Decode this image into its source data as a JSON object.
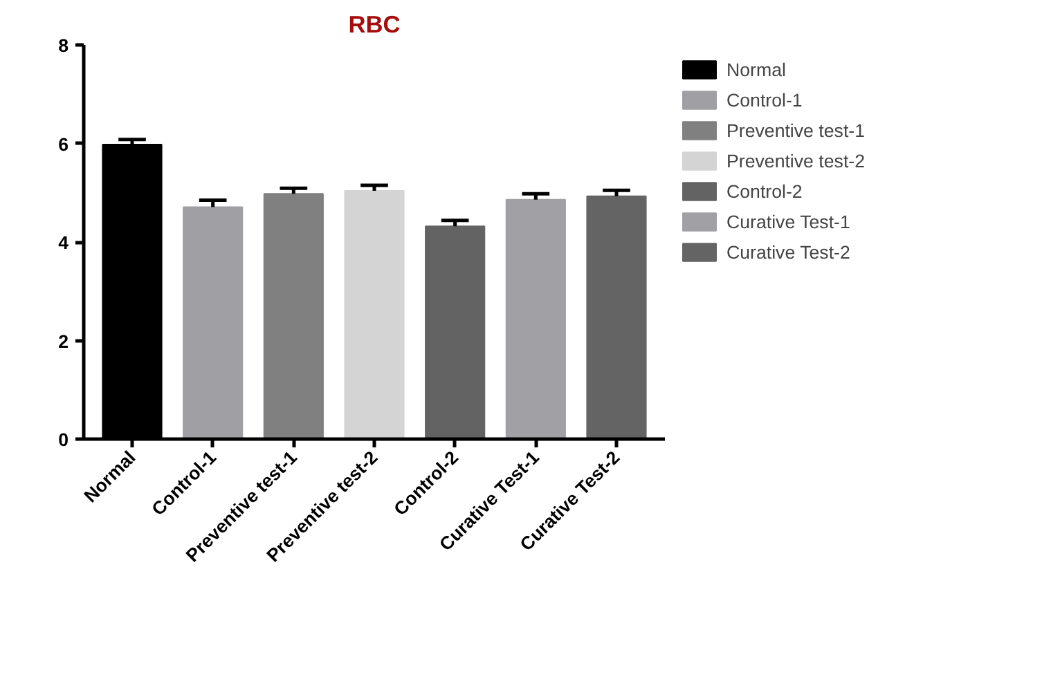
{
  "chart_data": {
    "type": "bar",
    "title": "RBC",
    "categories": [
      "Normal",
      "Control-1",
      "Preventive test-1",
      "Preventive test-2",
      "Control-2",
      "Curative Test-1",
      "Curative Test-2"
    ],
    "series": [
      {
        "name": "Normal",
        "color": "#000000",
        "values": [
          5.98,
          null,
          null,
          null,
          null,
          null,
          null
        ],
        "errors": [
          [
            5.98,
            6.08
          ],
          null,
          null,
          null,
          null,
          null,
          null
        ]
      },
      {
        "name": "Control-1",
        "color": "#a0a0a4",
        "values": [
          null,
          4.71,
          null,
          null,
          null,
          null,
          null
        ],
        "errors": [
          null,
          [
            4.71,
            4.85
          ],
          null,
          null,
          null,
          null,
          null
        ]
      },
      {
        "name": "Preventive test-1",
        "color": "#808080",
        "values": [
          null,
          null,
          4.98,
          null,
          null,
          null,
          null
        ],
        "errors": [
          null,
          null,
          [
            4.98,
            5.09
          ],
          null,
          null,
          null,
          null
        ]
      },
      {
        "name": "Preventive test-2",
        "color": "#d4d4d4",
        "values": [
          null,
          null,
          null,
          5.04,
          null,
          null,
          null
        ],
        "errors": [
          null,
          null,
          null,
          [
            5.04,
            5.15
          ],
          null,
          null,
          null
        ]
      },
      {
        "name": "Control-2",
        "color": "#636363",
        "values": [
          null,
          null,
          null,
          null,
          4.32,
          null,
          null
        ],
        "errors": [
          null,
          null,
          null,
          null,
          [
            4.32,
            4.44
          ],
          null,
          null
        ]
      },
      {
        "name": "Curative Test-1",
        "color": "#a1a1a5",
        "values": [
          null,
          null,
          null,
          null,
          null,
          4.86,
          null
        ],
        "errors": [
          null,
          null,
          null,
          null,
          null,
          [
            4.86,
            4.98
          ],
          null
        ]
      },
      {
        "name": "Curative Test-2",
        "color": "#646464",
        "values": [
          null,
          null,
          null,
          null,
          null,
          null,
          4.93
        ],
        "errors": [
          null,
          null,
          null,
          null,
          null,
          null,
          [
            4.93,
            5.05
          ]
        ]
      }
    ],
    "ylim": [
      0,
      8
    ],
    "yticks": [
      0,
      2,
      4,
      6,
      8
    ],
    "grid": false,
    "legend": "right"
  }
}
